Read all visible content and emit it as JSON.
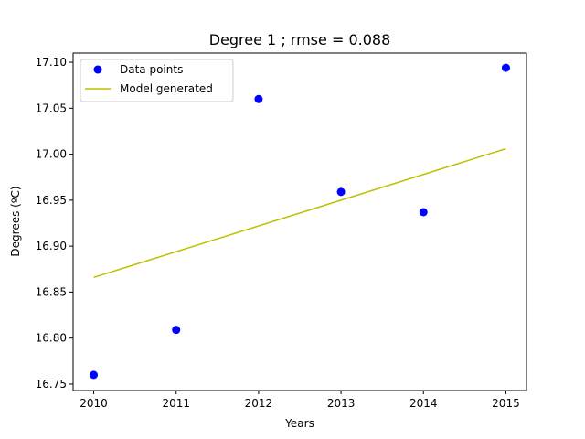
{
  "chart_data": {
    "type": "scatter",
    "title": "Degree 1 ; rmse = 0.088",
    "xlabel": "Years",
    "ylabel": "Degrees (ºC)",
    "xlim": [
      2009.75,
      2015.25
    ],
    "ylim": [
      16.743,
      17.11
    ],
    "x_ticks": [
      2010,
      2011,
      2012,
      2013,
      2014,
      2015
    ],
    "y_ticks": [
      16.75,
      16.8,
      16.85,
      16.9,
      16.95,
      17.0,
      17.05,
      17.1
    ],
    "x_tick_labels": [
      "2010",
      "2011",
      "2012",
      "2013",
      "2014",
      "2015"
    ],
    "y_tick_labels": [
      "16.75",
      "16.80",
      "16.85",
      "16.90",
      "16.95",
      "17.00",
      "17.05",
      "17.10"
    ],
    "grid": false,
    "legend_position": "top-left",
    "series": [
      {
        "name": "Data points",
        "kind": "scatter",
        "color": "#0000ff",
        "x": [
          2010,
          2011,
          2012,
          2013,
          2014,
          2015
        ],
        "y": [
          16.76,
          16.809,
          17.06,
          16.959,
          16.937,
          17.094
        ]
      },
      {
        "name": "Model generated",
        "kind": "line",
        "color": "#bfbf00",
        "x": [
          2010,
          2015
        ],
        "y": [
          16.866,
          17.006
        ]
      }
    ]
  }
}
